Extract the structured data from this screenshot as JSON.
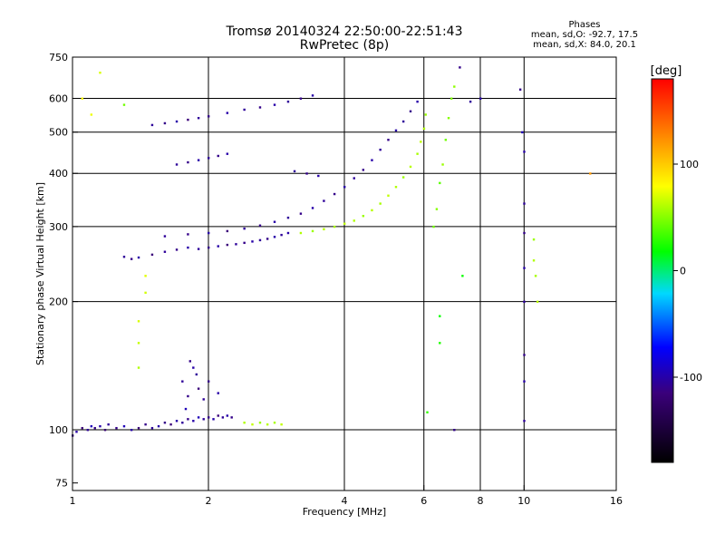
{
  "header": {
    "title_line1": "Tromsø 20140324 22:50:00-22:51:43",
    "title_line2": "RwPretec (8p)",
    "phase_title": "Phases",
    "phase_o": "mean, sd,O: -92.7, 17.5",
    "phase_x": "mean, sd,X: 84.0, 20.1"
  },
  "chart_data": {
    "type": "scatter",
    "xlabel": "Frequency [MHz]",
    "ylabel": "Stationary phase Virtual Height [km]",
    "x_scale": "log",
    "y_scale": "log",
    "xlim": [
      1,
      16
    ],
    "ylim": [
      72,
      750
    ],
    "x_ticks": [
      {
        "value": 1,
        "label": "1"
      },
      {
        "value": 2,
        "label": "2"
      },
      {
        "value": 4,
        "label": "4"
      },
      {
        "value": 6,
        "label": "6"
      },
      {
        "value": 8,
        "label": "8"
      },
      {
        "value": 10,
        "label": "10"
      },
      {
        "value": 16,
        "label": "16"
      }
    ],
    "y_ticks": [
      {
        "value": 75,
        "label": "75"
      },
      {
        "value": 100,
        "label": "100"
      },
      {
        "value": 200,
        "label": "200"
      },
      {
        "value": 300,
        "label": "300"
      },
      {
        "value": 400,
        "label": "400"
      },
      {
        "value": 500,
        "label": "500"
      },
      {
        "value": 600,
        "label": "600"
      },
      {
        "value": 750,
        "label": "750"
      }
    ],
    "x_grid": [
      2,
      4,
      6,
      8,
      10
    ],
    "y_grid": [
      100,
      200,
      300,
      400,
      500,
      600
    ],
    "grid": true,
    "colorbar": {
      "label": "[deg]",
      "range": [
        -180,
        180
      ],
      "ticks": [
        {
          "value": 100,
          "label": "100"
        },
        {
          "value": 0,
          "label": "0"
        },
        {
          "value": -100,
          "label": "-100"
        }
      ]
    },
    "series": [
      {
        "points": [
          [
            1.0,
            97,
            -110
          ],
          [
            1.02,
            99,
            -100
          ],
          [
            1.05,
            101,
            -115
          ],
          [
            1.08,
            100,
            -105
          ],
          [
            1.1,
            102,
            -95
          ],
          [
            1.12,
            101,
            -110
          ],
          [
            1.15,
            102,
            -100
          ],
          [
            1.18,
            100,
            -120
          ],
          [
            1.2,
            103,
            -105
          ],
          [
            1.25,
            101,
            -110
          ],
          [
            1.3,
            102,
            -95
          ],
          [
            1.35,
            100,
            -100
          ],
          [
            1.4,
            101,
            -115
          ],
          [
            1.45,
            103,
            -110
          ],
          [
            1.5,
            101,
            -105
          ],
          [
            1.55,
            102,
            -100
          ],
          [
            1.6,
            104,
            -110
          ],
          [
            1.65,
            103,
            -115
          ],
          [
            1.7,
            105,
            -100
          ],
          [
            1.75,
            104,
            -105
          ],
          [
            1.8,
            106,
            -110
          ],
          [
            1.85,
            105,
            -100
          ],
          [
            1.9,
            107,
            -95
          ],
          [
            1.95,
            106,
            -105
          ],
          [
            2.0,
            107,
            -110
          ],
          [
            2.05,
            106,
            -100
          ],
          [
            2.1,
            108,
            -115
          ],
          [
            2.15,
            107,
            -105
          ],
          [
            2.2,
            108,
            -100
          ],
          [
            2.25,
            107,
            -110
          ],
          [
            1.75,
            130,
            -105
          ],
          [
            1.8,
            120,
            -110
          ],
          [
            1.85,
            140,
            -100
          ],
          [
            1.9,
            125,
            -115
          ],
          [
            1.95,
            118,
            -105
          ],
          [
            2.0,
            130,
            -110
          ],
          [
            2.1,
            122,
            -100
          ],
          [
            1.78,
            112,
            -95
          ],
          [
            1.88,
            135,
            -105
          ],
          [
            1.82,
            145,
            -110
          ],
          [
            2.4,
            104,
            60
          ],
          [
            2.5,
            103,
            65
          ],
          [
            2.6,
            104,
            55
          ],
          [
            2.7,
            103,
            62
          ],
          [
            2.8,
            104,
            58
          ],
          [
            2.9,
            103,
            64
          ],
          [
            1.3,
            255,
            -105
          ],
          [
            1.35,
            252,
            -110
          ],
          [
            1.4,
            254,
            -100
          ],
          [
            1.5,
            258,
            -115
          ],
          [
            1.6,
            262,
            -105
          ],
          [
            1.7,
            265,
            -110
          ],
          [
            1.8,
            268,
            -100
          ],
          [
            1.9,
            266,
            -105
          ],
          [
            2.0,
            268,
            -110
          ],
          [
            2.1,
            270,
            -100
          ],
          [
            2.2,
            272,
            -115
          ],
          [
            2.3,
            273,
            -105
          ],
          [
            2.4,
            275,
            -110
          ],
          [
            2.5,
            277,
            -100
          ],
          [
            2.6,
            279,
            -105
          ],
          [
            2.7,
            281,
            -110
          ],
          [
            2.8,
            284,
            -100
          ],
          [
            2.9,
            287,
            -105
          ],
          [
            3.0,
            290,
            -100
          ],
          [
            1.6,
            285,
            -105
          ],
          [
            1.8,
            288,
            -110
          ],
          [
            2.0,
            290,
            -100
          ],
          [
            2.2,
            293,
            -115
          ],
          [
            2.4,
            297,
            -105
          ],
          [
            2.6,
            302,
            -110
          ],
          [
            2.8,
            308,
            -100
          ],
          [
            3.0,
            315,
            -105
          ],
          [
            3.2,
            322,
            -110
          ],
          [
            3.4,
            332,
            -100
          ],
          [
            3.6,
            345,
            -105
          ],
          [
            3.8,
            358,
            -110
          ],
          [
            4.0,
            372,
            -100
          ],
          [
            4.2,
            390,
            -105
          ],
          [
            4.4,
            408,
            -110
          ],
          [
            4.6,
            430,
            -100
          ],
          [
            4.8,
            455,
            -105
          ],
          [
            5.0,
            480,
            -110
          ],
          [
            5.2,
            505,
            -100
          ],
          [
            5.4,
            530,
            -105
          ],
          [
            5.6,
            560,
            -110
          ],
          [
            5.8,
            590,
            -100
          ],
          [
            3.2,
            290,
            60
          ],
          [
            3.4,
            293,
            55
          ],
          [
            3.6,
            296,
            62
          ],
          [
            3.8,
            300,
            58
          ],
          [
            4.0,
            305,
            64
          ],
          [
            4.2,
            310,
            60
          ],
          [
            4.4,
            318,
            55
          ],
          [
            4.6,
            328,
            62
          ],
          [
            4.8,
            340,
            58
          ],
          [
            5.0,
            355,
            64
          ],
          [
            5.2,
            372,
            60
          ],
          [
            5.4,
            392,
            55
          ],
          [
            5.6,
            415,
            62
          ],
          [
            5.8,
            445,
            58
          ],
          [
            5.9,
            475,
            64
          ],
          [
            6.0,
            510,
            60
          ],
          [
            6.05,
            550,
            55
          ],
          [
            1.5,
            520,
            -105
          ],
          [
            1.6,
            525,
            -110
          ],
          [
            1.7,
            530,
            -100
          ],
          [
            1.8,
            535,
            -115
          ],
          [
            1.9,
            540,
            -105
          ],
          [
            2.0,
            545,
            -110
          ],
          [
            2.2,
            555,
            -100
          ],
          [
            2.4,
            565,
            -105
          ],
          [
            2.6,
            572,
            -110
          ],
          [
            2.8,
            580,
            -100
          ],
          [
            3.0,
            590,
            -105
          ],
          [
            3.2,
            600,
            -110
          ],
          [
            3.4,
            610,
            -100
          ],
          [
            1.7,
            420,
            -105
          ],
          [
            1.8,
            425,
            -110
          ],
          [
            1.9,
            430,
            -100
          ],
          [
            2.0,
            435,
            -105
          ],
          [
            2.1,
            440,
            -110
          ],
          [
            2.2,
            445,
            -100
          ],
          [
            3.1,
            405,
            -105
          ],
          [
            3.3,
            400,
            -110
          ],
          [
            3.5,
            395,
            -100
          ],
          [
            6.3,
            300,
            45
          ],
          [
            6.4,
            330,
            50
          ],
          [
            6.5,
            380,
            40
          ],
          [
            6.6,
            420,
            55
          ],
          [
            6.7,
            480,
            45
          ],
          [
            6.8,
            540,
            50
          ],
          [
            6.9,
            600,
            48
          ],
          [
            7.0,
            640,
            52
          ],
          [
            9.8,
            630,
            -110
          ],
          [
            9.9,
            500,
            -95
          ],
          [
            10.0,
            450,
            -100
          ],
          [
            10.0,
            340,
            -105
          ],
          [
            10.0,
            290,
            -110
          ],
          [
            10.0,
            240,
            -100
          ],
          [
            10.0,
            200,
            -105
          ],
          [
            10.0,
            150,
            -110
          ],
          [
            10.0,
            130,
            -100
          ],
          [
            10.0,
            105,
            -105
          ],
          [
            10.5,
            280,
            55
          ],
          [
            10.5,
            250,
            60
          ],
          [
            10.6,
            230,
            58
          ],
          [
            10.7,
            200,
            62
          ],
          [
            6.1,
            110,
            30
          ],
          [
            6.5,
            160,
            25
          ],
          [
            6.5,
            185,
            20
          ],
          [
            7.0,
            100,
            -110
          ],
          [
            7.3,
            230,
            20
          ],
          [
            7.6,
            590,
            -105
          ],
          [
            7.2,
            710,
            -110
          ],
          [
            8.0,
            600,
            -100
          ],
          [
            1.4,
            180,
            70
          ],
          [
            1.4,
            160,
            65
          ],
          [
            1.4,
            140,
            60
          ],
          [
            1.45,
            230,
            72
          ],
          [
            1.45,
            210,
            68
          ],
          [
            1.05,
            600,
            80
          ],
          [
            1.1,
            550,
            75
          ],
          [
            1.15,
            690,
            70
          ],
          [
            1.3,
            580,
            45
          ],
          [
            14.0,
            400,
            120
          ]
        ]
      }
    ]
  }
}
